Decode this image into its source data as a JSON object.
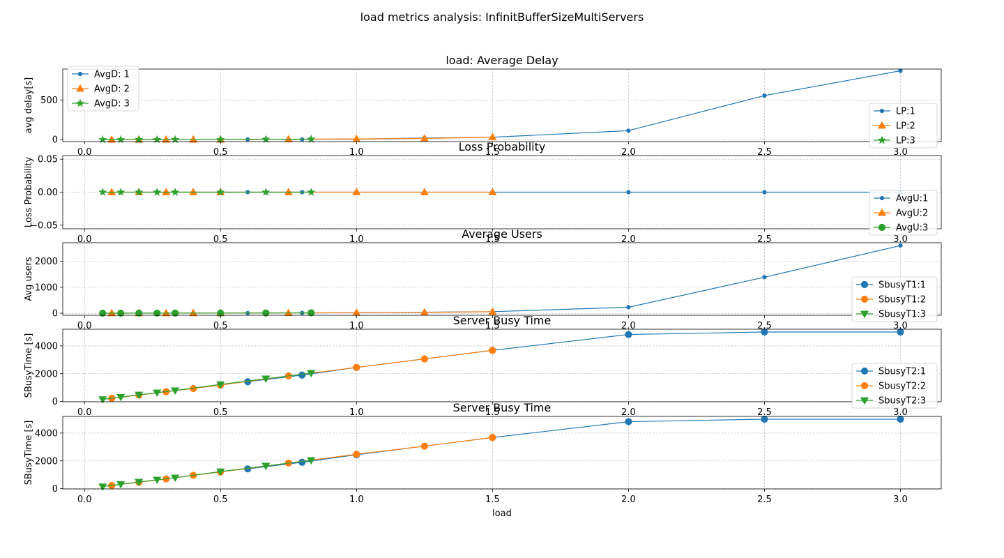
{
  "figure": {
    "suptitle": "load metrics analysis: InfinitBufferSizeMultiServers",
    "xlabel": "load"
  },
  "colors": {
    "s1": "#1f77b4",
    "s2": "#ff7f0e",
    "s3": "#2ca02c",
    "grid": "#b0b0b0"
  },
  "chart_data": [
    {
      "type": "line",
      "title": "load: Average Delay",
      "ylabel": "avg delay[s]",
      "xlim": [
        -0.08,
        3.15
      ],
      "ylim": [
        -25,
        890
      ],
      "xticks": [
        0.0,
        0.5,
        1.0,
        1.5,
        2.0,
        2.5,
        3.0
      ],
      "yticks": [
        {
          "v": 0,
          "label": "0"
        },
        {
          "v": 500,
          "label": "500"
        }
      ],
      "grid": true,
      "legends": [
        {
          "placement": "top-left",
          "labels": [
            "AvgD: 1",
            "AvgD: 2",
            "AvgD: 3"
          ],
          "markers": [
            "dot",
            "triangle-up",
            "star"
          ]
        },
        {
          "placement": "bottom-right",
          "labels": [
            "LP:1",
            "LP:2",
            "LP:3"
          ],
          "markers": [
            "dot",
            "triangle-up",
            "star"
          ]
        }
      ],
      "series": [
        {
          "name": "AvgD: 1",
          "marker": "dot",
          "x": [
            0.2,
            0.4,
            0.6,
            0.8,
            1.0,
            1.25,
            1.5,
            2.0,
            2.5,
            3.0
          ],
          "y": [
            0.4,
            0.8,
            1.5,
            3,
            7,
            20,
            30,
            113,
            555,
            868
          ]
        },
        {
          "name": "AvgD: 2",
          "marker": "triangle-up",
          "x": [
            0.1,
            0.2,
            0.3,
            0.4,
            0.5,
            0.75,
            1.0,
            1.25,
            1.5
          ],
          "y": [
            0.1,
            0.3,
            0.6,
            1,
            2,
            5,
            9,
            15,
            30
          ]
        },
        {
          "name": "AvgD: 3",
          "marker": "star",
          "x": [
            0.0667,
            0.1333,
            0.2,
            0.2667,
            0.3333,
            0.5,
            0.6667,
            0.8333
          ],
          "y": [
            0.1,
            0.2,
            0.4,
            0.6,
            0.9,
            2,
            4,
            6
          ]
        }
      ]
    },
    {
      "type": "line",
      "title": "Loss Probability",
      "ylabel": "Loss Probability",
      "xlim": [
        -0.08,
        3.15
      ],
      "ylim": [
        -0.0555,
        0.0555
      ],
      "xticks": [
        0.0,
        0.5,
        1.0,
        1.5,
        2.0,
        2.5,
        3.0
      ],
      "yticks": [
        {
          "v": -0.05,
          "label": "−0.05"
        },
        {
          "v": 0.0,
          "label": "0.00"
        },
        {
          "v": 0.05,
          "label": "0.05"
        }
      ],
      "grid": true,
      "legends": [
        {
          "placement": "bottom-right",
          "labels": [
            "AvgU:1",
            "AvgU:2",
            "AvgU:3"
          ],
          "markers": [
            "dot",
            "triangle-up",
            "circle"
          ]
        }
      ],
      "series": [
        {
          "name": "LP:1",
          "marker": "dot",
          "x": [
            0.2,
            0.4,
            0.6,
            0.8,
            1.0,
            1.25,
            1.5,
            2.0,
            2.5,
            3.0
          ],
          "y": [
            0,
            0,
            0,
            0,
            0,
            0,
            0,
            0,
            0,
            0
          ]
        },
        {
          "name": "LP:2",
          "marker": "triangle-up",
          "x": [
            0.1,
            0.2,
            0.3,
            0.4,
            0.5,
            0.75,
            1.0,
            1.25,
            1.5
          ],
          "y": [
            0,
            0,
            0,
            0,
            0,
            0,
            0,
            0,
            0
          ]
        },
        {
          "name": "LP:3",
          "marker": "star",
          "x": [
            0.0667,
            0.1333,
            0.2,
            0.2667,
            0.3333,
            0.5,
            0.6667,
            0.8333
          ],
          "y": [
            0,
            0,
            0,
            0,
            0,
            0,
            0,
            0
          ]
        }
      ]
    },
    {
      "type": "line",
      "title": "Average Users",
      "ylabel": "Avg users",
      "xlim": [
        -0.08,
        3.15
      ],
      "ylim": [
        -80,
        2720
      ],
      "xticks": [
        0.0,
        0.5,
        1.0,
        1.5,
        2.0,
        2.5,
        3.0
      ],
      "yticks": [
        {
          "v": 0,
          "label": "0"
        },
        {
          "v": 1000,
          "label": "1000"
        },
        {
          "v": 2000,
          "label": "2000"
        }
      ],
      "grid": true,
      "legends": [
        {
          "placement": "bottom-right",
          "labels": [
            "SbusyT1:1",
            "SbusyT1:2",
            "SbusyT1:3"
          ],
          "markers": [
            "circle",
            "circle",
            "triangle-down"
          ]
        }
      ],
      "series": [
        {
          "name": "AvgU:1",
          "marker": "dot",
          "x": [
            0.2,
            0.4,
            0.6,
            0.8,
            1.0,
            1.25,
            1.5,
            2.0,
            2.5,
            3.0
          ],
          "y": [
            1,
            2,
            5,
            10,
            20,
            40,
            60,
            230,
            1390,
            2610
          ]
        },
        {
          "name": "AvgU:2",
          "marker": "triangle-up",
          "x": [
            0.1,
            0.2,
            0.3,
            0.4,
            0.5,
            0.75,
            1.0,
            1.25,
            1.5
          ],
          "y": [
            1,
            2,
            3,
            4,
            6,
            10,
            20,
            30,
            60
          ]
        },
        {
          "name": "AvgU:3",
          "marker": "circle",
          "x": [
            0.0667,
            0.1333,
            0.2,
            0.2667,
            0.3333,
            0.5,
            0.6667,
            0.8333
          ],
          "y": [
            1,
            1,
            2,
            3,
            4,
            6,
            9,
            14
          ]
        }
      ]
    },
    {
      "type": "line",
      "title": "Server Busy Time",
      "ylabel": "SBusyTime [s]",
      "xlim": [
        -0.08,
        3.15
      ],
      "ylim": [
        -20,
        5200
      ],
      "xticks": [
        0.0,
        0.5,
        1.0,
        1.5,
        2.0,
        2.5,
        3.0
      ],
      "yticks": [
        {
          "v": 0,
          "label": "0"
        },
        {
          "v": 2000,
          "label": "2000"
        },
        {
          "v": 4000,
          "label": "4000"
        }
      ],
      "grid": true,
      "legends": [
        {
          "placement": "bottom-right",
          "labels": [
            "SbusyT2:1",
            "SbusyT2:2",
            "SbusyT2:3"
          ],
          "markers": [
            "circle",
            "circle",
            "triangle-down"
          ]
        }
      ],
      "series": [
        {
          "name": "SbusyT1:1",
          "marker": "circle",
          "x": [
            0.6,
            0.8,
            1.0,
            1.5,
            2.0,
            2.5,
            3.0
          ],
          "y": [
            1420,
            1900,
            2450,
            3680,
            4820,
            5000,
            5000
          ]
        },
        {
          "name": "SbusyT1:2",
          "marker": "circle",
          "x": [
            0.1,
            0.2,
            0.3,
            0.4,
            0.5,
            0.75,
            1.0,
            1.25,
            1.5
          ],
          "y": [
            230,
            460,
            700,
            930,
            1180,
            1840,
            2450,
            3060,
            3680
          ]
        },
        {
          "name": "SbusyT1:3",
          "marker": "triangle-down",
          "x": [
            0.0667,
            0.1333,
            0.2,
            0.2667,
            0.3333,
            0.5,
            0.6667,
            0.8333
          ],
          "y": [
            150,
            320,
            480,
            640,
            790,
            1230,
            1640,
            2040
          ]
        }
      ]
    },
    {
      "type": "line",
      "title": "Server Busy Time",
      "ylabel": "SBusyTime [s]",
      "xlim": [
        -0.08,
        3.15
      ],
      "ylim": [
        -20,
        5200
      ],
      "xticks": [
        0.0,
        0.5,
        1.0,
        1.5,
        2.0,
        2.5,
        3.0
      ],
      "yticks": [
        {
          "v": 0,
          "label": "0"
        },
        {
          "v": 2000,
          "label": "2000"
        },
        {
          "v": 4000,
          "label": "4000"
        }
      ],
      "grid": true,
      "legends": [],
      "series": [
        {
          "name": "SbusyT2:1",
          "marker": "circle",
          "x": [
            0.6,
            0.8,
            1.0,
            1.5,
            2.0,
            2.5,
            3.0
          ],
          "y": [
            1420,
            1900,
            2440,
            3680,
            4820,
            5000,
            5000
          ]
        },
        {
          "name": "SbusyT2:2",
          "marker": "circle",
          "x": [
            0.1,
            0.2,
            0.3,
            0.4,
            0.5,
            0.75,
            1.0,
            1.25,
            1.5
          ],
          "y": [
            230,
            460,
            700,
            960,
            1200,
            1840,
            2480,
            3060,
            3680
          ]
        },
        {
          "name": "SbusyT2:3",
          "marker": "triangle-down",
          "x": [
            0.0667,
            0.1333,
            0.2,
            0.2667,
            0.3333,
            0.5,
            0.6667,
            0.8333
          ],
          "y": [
            150,
            320,
            480,
            640,
            790,
            1230,
            1640,
            2040
          ]
        }
      ]
    }
  ]
}
